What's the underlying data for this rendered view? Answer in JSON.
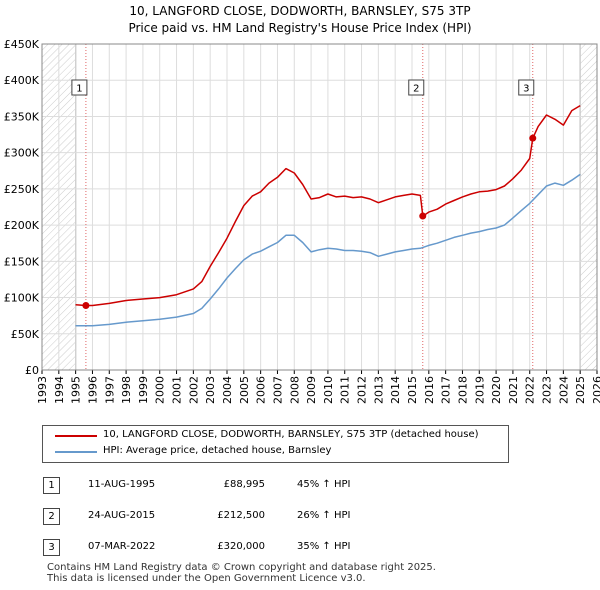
{
  "title_line1": "10, LANGFORD CLOSE, DODWORTH, BARNSLEY, S75 3TP",
  "title_line2": "Price paid vs. HM Land Registry's House Price Index (HPI)",
  "chart_data": {
    "type": "line",
    "ylim": [
      0,
      450000
    ],
    "xlim": [
      1993.0,
      2026.0
    ],
    "y_ticks": [
      {
        "value": 0,
        "label": "£0"
      },
      {
        "value": 50000,
        "label": "£50K"
      },
      {
        "value": 100000,
        "label": "£100K"
      },
      {
        "value": 150000,
        "label": "£150K"
      },
      {
        "value": 200000,
        "label": "£200K"
      },
      {
        "value": 250000,
        "label": "£250K"
      },
      {
        "value": 300000,
        "label": "£300K"
      },
      {
        "value": 350000,
        "label": "£350K"
      },
      {
        "value": 400000,
        "label": "£400K"
      },
      {
        "value": 450000,
        "label": "£450K"
      }
    ],
    "x_ticks": [
      "1993",
      "1994",
      "1995",
      "1996",
      "1997",
      "1998",
      "1999",
      "2000",
      "2001",
      "2002",
      "2003",
      "2004",
      "2005",
      "2006",
      "2007",
      "2008",
      "2009",
      "2010",
      "2011",
      "2012",
      "2013",
      "2014",
      "2015",
      "2016",
      "2017",
      "2018",
      "2019",
      "2020",
      "2021",
      "2022",
      "2023",
      "2024",
      "2025",
      "2026"
    ],
    "hatch_before": 1995.0,
    "hatch_after": 2025.0,
    "series": [
      {
        "name": "10, LANGFORD CLOSE, DODWORTH, BARNSLEY, S75 3TP (detached house)",
        "color": "#cc0000",
        "x": [
          1995.0,
          1995.6,
          1996.0,
          1997.0,
          1998.0,
          1999.0,
          2000.0,
          2001.0,
          2002.0,
          2002.5,
          2003.0,
          2003.5,
          2004.0,
          2004.5,
          2005.0,
          2005.5,
          2006.0,
          2006.5,
          2007.0,
          2007.5,
          2008.0,
          2008.5,
          2009.0,
          2009.5,
          2010.0,
          2010.5,
          2011.0,
          2011.5,
          2012.0,
          2012.5,
          2013.0,
          2013.5,
          2014.0,
          2014.5,
          2015.0,
          2015.5,
          2015.64,
          2016.0,
          2016.5,
          2017.0,
          2017.5,
          2018.0,
          2018.5,
          2019.0,
          2019.5,
          2020.0,
          2020.5,
          2021.0,
          2021.5,
          2022.0,
          2022.18,
          2022.5,
          2023.0,
          2023.5,
          2024.0,
          2024.5,
          2025.0
        ],
        "y": [
          90000,
          88995,
          89000,
          92000,
          96000,
          98000,
          100000,
          104000,
          112000,
          122000,
          143000,
          162000,
          182000,
          205000,
          227000,
          240000,
          246000,
          258000,
          266000,
          278000,
          272000,
          256000,
          236000,
          238000,
          243000,
          239000,
          240000,
          238000,
          239000,
          236000,
          231000,
          235000,
          239000,
          241000,
          243000,
          241000,
          212500,
          218000,
          222000,
          229000,
          234000,
          239000,
          243000,
          246000,
          247000,
          249000,
          254000,
          264000,
          276000,
          292000,
          320000,
          336000,
          352000,
          346000,
          338000,
          358000,
          365000
        ]
      },
      {
        "name": "HPI: Average price, detached house, Barnsley",
        "color": "#6699cc",
        "x": [
          1995.0,
          1996.0,
          1997.0,
          1998.0,
          1999.0,
          2000.0,
          2001.0,
          2002.0,
          2002.5,
          2003.0,
          2003.5,
          2004.0,
          2004.5,
          2005.0,
          2005.5,
          2006.0,
          2006.5,
          2007.0,
          2007.5,
          2008.0,
          2008.5,
          2009.0,
          2009.5,
          2010.0,
          2010.5,
          2011.0,
          2011.5,
          2012.0,
          2012.5,
          2013.0,
          2013.5,
          2014.0,
          2014.5,
          2015.0,
          2015.5,
          2016.0,
          2016.5,
          2017.0,
          2017.5,
          2018.0,
          2018.5,
          2019.0,
          2019.5,
          2020.0,
          2020.5,
          2021.0,
          2021.5,
          2022.0,
          2022.5,
          2023.0,
          2023.5,
          2024.0,
          2024.5,
          2025.0
        ],
        "y": [
          61000,
          61000,
          63000,
          66000,
          68000,
          70000,
          73000,
          78000,
          85000,
          98000,
          112000,
          127000,
          140000,
          152000,
          160000,
          164000,
          170000,
          176000,
          186000,
          186000,
          176000,
          163000,
          166000,
          168000,
          167000,
          165000,
          165000,
          164000,
          162000,
          157000,
          160000,
          163000,
          165000,
          167000,
          168000,
          172000,
          175000,
          179000,
          183000,
          186000,
          189000,
          191000,
          194000,
          196000,
          200000,
          210000,
          220000,
          230000,
          242000,
          254000,
          258000,
          255000,
          262000,
          270000
        ]
      }
    ],
    "markers": [
      {
        "label": "1",
        "x": 1995.61,
        "y": 88995
      },
      {
        "label": "2",
        "x": 2015.64,
        "y": 212500
      },
      {
        "label": "3",
        "x": 2022.18,
        "y": 320000
      }
    ]
  },
  "legend": {
    "line1": "10, LANGFORD CLOSE, DODWORTH, BARNSLEY, S75 3TP (detached house)",
    "line2": "HPI: Average price, detached house, Barnsley"
  },
  "transactions": [
    {
      "num": "1",
      "date": "11-AUG-1995",
      "price": "£88,995",
      "hpi": "45% ↑ HPI"
    },
    {
      "num": "2",
      "date": "24-AUG-2015",
      "price": "£212,500",
      "hpi": "26% ↑ HPI"
    },
    {
      "num": "3",
      "date": "07-MAR-2022",
      "price": "£320,000",
      "hpi": "35% ↑ HPI"
    }
  ],
  "footer_line1": "Contains HM Land Registry data © Crown copyright and database right 2025.",
  "footer_line2": "This data is licensed under the Open Government Licence v3.0."
}
